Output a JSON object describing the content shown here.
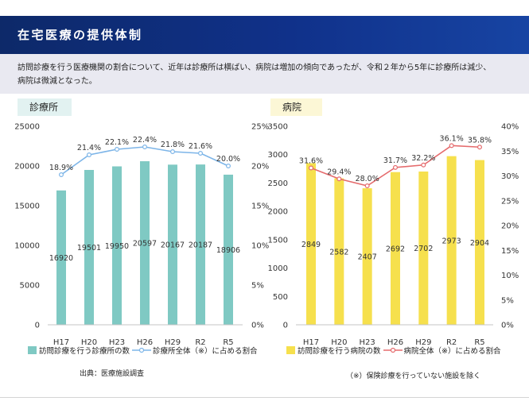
{
  "header": {
    "title": "在宅医療の提供体制"
  },
  "summary": {
    "lines": [
      "訪問診療を行う医療機関の割合について、近年は診療所は横ばい、病院は増加の傾向であったが、令和２年から5年に診療所は減少、",
      "病院は微減となった。"
    ]
  },
  "footer": {
    "source": "出典：医療施設調査",
    "note": "（※）保険診療を行っていない施設を除く"
  },
  "colors": {
    "header": "#0d2969",
    "summary_bg": "#e9e9f1",
    "clinic_panel_bg": "#e2f2f1",
    "hospital_panel_bg": "#fcf7d6"
  },
  "chart_data": [
    {
      "type": "bar",
      "title": "診療所",
      "categories": [
        "H17",
        "H20",
        "H23",
        "H26",
        "H29",
        "R2",
        "R5"
      ],
      "series": [
        {
          "name": "訪問診療を行う診療所の数",
          "type": "bar",
          "axis": "left",
          "values": [
            16920,
            19501,
            19950,
            20597,
            20167,
            20187,
            18906
          ],
          "color": "#7fc9c3"
        },
        {
          "name": "診療所全体（※）に占める割合",
          "type": "line",
          "axis": "right",
          "values": [
            18.9,
            21.4,
            22.1,
            22.4,
            21.8,
            21.6,
            20.0
          ],
          "label_suffix": "%",
          "color": "#7db5e8"
        }
      ],
      "ylim": [
        0,
        25000
      ],
      "yticks": [
        0,
        5000,
        10000,
        15000,
        20000,
        25000
      ],
      "y2lim": [
        0,
        25
      ],
      "y2ticks": [
        0,
        5,
        10,
        15,
        20,
        25
      ],
      "y2_tick_suffix": "%",
      "grid": false,
      "legend": "bottom"
    },
    {
      "type": "bar",
      "title": "病院",
      "categories": [
        "H17",
        "H20",
        "H23",
        "H26",
        "H29",
        "R2",
        "R5"
      ],
      "series": [
        {
          "name": "訪問診療を行う病院の数",
          "type": "bar",
          "axis": "left",
          "values": [
            2849,
            2582,
            2407,
            2692,
            2702,
            2973,
            2904
          ],
          "color": "#f6e04d"
        },
        {
          "name": "病院全体（※）に占める割合",
          "type": "line",
          "axis": "right",
          "values": [
            31.6,
            29.4,
            28.0,
            31.7,
            32.2,
            36.1,
            35.8
          ],
          "label_suffix": "%",
          "color": "#e56b6d"
        }
      ],
      "ylim": [
        0,
        3500
      ],
      "yticks": [
        0,
        500,
        1000,
        1500,
        2000,
        2500,
        3000,
        3500
      ],
      "y2lim": [
        0,
        40
      ],
      "y2ticks": [
        0,
        5,
        10,
        15,
        20,
        25,
        30,
        35,
        40
      ],
      "y2_tick_suffix": "%",
      "grid": false,
      "legend": "bottom"
    }
  ]
}
